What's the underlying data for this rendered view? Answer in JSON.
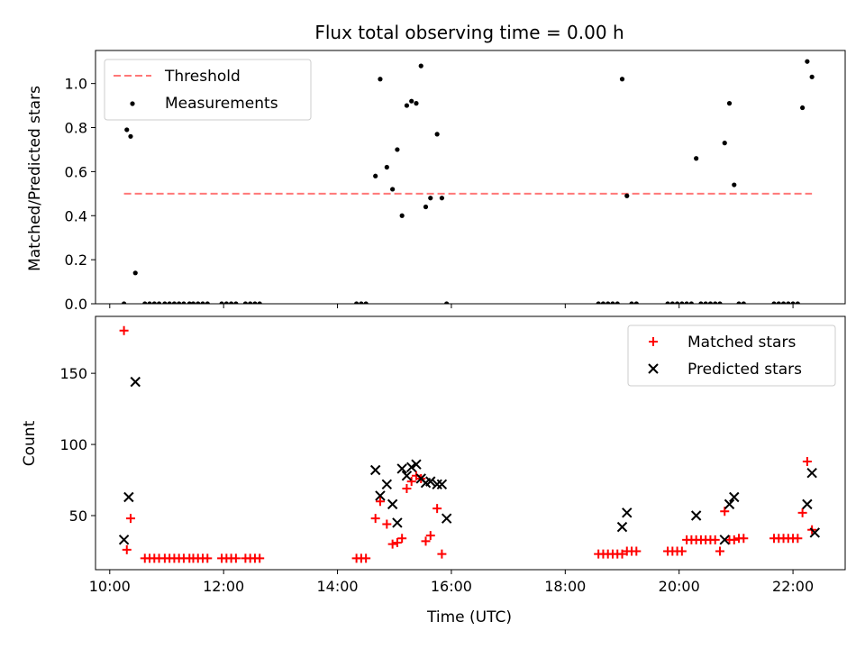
{
  "chart_data": [
    {
      "type": "scatter",
      "title": "Flux total observing time = 0.00 h",
      "ylabel": "Matched/Predicted stars",
      "xlabel": "",
      "xlim": [
        "09:45",
        "22:55"
      ],
      "ylim": [
        0,
        1.15
      ],
      "yticks": [
        0.0,
        0.2,
        0.4,
        0.6,
        0.8,
        1.0
      ],
      "ytick_labels": [
        "0.0",
        "0.2",
        "0.4",
        "0.6",
        "0.8",
        "1.0"
      ],
      "xticks": [
        "10:00",
        "12:00",
        "14:00",
        "16:00",
        "18:00",
        "20:00",
        "22:00"
      ],
      "show_xtick_labels": false,
      "legend_position": "upper left",
      "legend": [
        "Threshold",
        "Measurements"
      ],
      "series": [
        {
          "name": "Threshold",
          "kind": "dashed-line",
          "color": "#ff7777",
          "x": [
            "10:15",
            "22:20"
          ],
          "y": [
            0.5,
            0.5
          ]
        },
        {
          "name": "Measurements",
          "kind": "dot",
          "color": "#000000",
          "x": [
            "10:15",
            "10:18",
            "10:22",
            "10:27",
            "10:37",
            "10:42",
            "10:47",
            "10:52",
            "10:58",
            "11:03",
            "11:08",
            "11:13",
            "11:18",
            "11:24",
            "11:28",
            "11:33",
            "11:38",
            "11:43",
            "11:58",
            "12:03",
            "12:08",
            "12:13",
            "12:23",
            "12:28",
            "12:33",
            "12:38",
            "14:20",
            "14:25",
            "14:30",
            "14:40",
            "14:45",
            "14:52",
            "14:58",
            "15:03",
            "15:08",
            "15:13",
            "15:18",
            "15:23",
            "15:28",
            "15:33",
            "15:38",
            "15:45",
            "15:50",
            "15:55",
            "18:35",
            "18:40",
            "18:45",
            "18:50",
            "18:55",
            "19:00",
            "19:05",
            "19:10",
            "19:15",
            "19:48",
            "19:53",
            "19:58",
            "20:03",
            "20:08",
            "20:13",
            "20:18",
            "20:23",
            "20:28",
            "20:33",
            "20:38",
            "20:43",
            "20:48",
            "20:53",
            "20:58",
            "21:03",
            "21:08",
            "21:40",
            "21:45",
            "21:50",
            "21:55",
            "22:00",
            "22:05",
            "22:10",
            "22:15",
            "22:20"
          ],
          "y": [
            0.0,
            0.79,
            0.76,
            0.14,
            0.0,
            0.0,
            0.0,
            0.0,
            0.0,
            0.0,
            0.0,
            0.0,
            0.0,
            0.0,
            0.0,
            0.0,
            0.0,
            0.0,
            0.0,
            0.0,
            0.0,
            0.0,
            0.0,
            0.0,
            0.0,
            0.0,
            0.0,
            0.0,
            0.0,
            0.58,
            1.02,
            0.62,
            0.52,
            0.7,
            0.4,
            0.9,
            0.92,
            0.91,
            1.08,
            0.44,
            0.48,
            0.77,
            0.48,
            0.0,
            0.0,
            0.0,
            0.0,
            0.0,
            0.0,
            1.02,
            0.49,
            0.0,
            0.0,
            0.0,
            0.0,
            0.0,
            0.0,
            0.0,
            0.0,
            0.66,
            0.0,
            0.0,
            0.0,
            0.0,
            0.0,
            0.73,
            0.91,
            0.54,
            0.0,
            0.0,
            0.0,
            0.0,
            0.0,
            0.0,
            0.0,
            0.0,
            0.89,
            1.1,
            1.03
          ]
        }
      ]
    },
    {
      "type": "scatter",
      "title": "",
      "ylabel": "Count",
      "xlabel": "Time (UTC)",
      "xlim": [
        "09:45",
        "22:55"
      ],
      "ylim": [
        12,
        190
      ],
      "yticks": [
        50,
        100,
        150
      ],
      "ytick_labels": [
        "50",
        "100",
        "150"
      ],
      "xticks": [
        "10:00",
        "12:00",
        "14:00",
        "16:00",
        "18:00",
        "20:00",
        "22:00"
      ],
      "xtick_labels": [
        "10:00",
        "12:00",
        "14:00",
        "16:00",
        "18:00",
        "20:00",
        "22:00"
      ],
      "show_xtick_labels": true,
      "legend_position": "upper right",
      "legend": [
        "Matched stars",
        "Predicted stars"
      ],
      "series": [
        {
          "name": "Matched stars",
          "marker": "plus",
          "color": "#ff0000",
          "x": [
            "10:15",
            "10:18",
            "10:22",
            "10:37",
            "10:42",
            "10:47",
            "10:52",
            "10:58",
            "11:03",
            "11:08",
            "11:13",
            "11:18",
            "11:24",
            "11:28",
            "11:33",
            "11:38",
            "11:43",
            "11:58",
            "12:03",
            "12:08",
            "12:13",
            "12:23",
            "12:28",
            "12:33",
            "12:38",
            "14:20",
            "14:25",
            "14:30",
            "14:40",
            "14:45",
            "14:52",
            "14:58",
            "15:03",
            "15:08",
            "15:13",
            "15:18",
            "15:23",
            "15:28",
            "15:33",
            "15:38",
            "15:45",
            "15:50",
            "18:35",
            "18:40",
            "18:45",
            "18:50",
            "18:55",
            "19:00",
            "19:05",
            "19:10",
            "19:15",
            "19:48",
            "19:53",
            "19:58",
            "20:03",
            "20:08",
            "20:13",
            "20:18",
            "20:23",
            "20:28",
            "20:33",
            "20:38",
            "20:43",
            "20:48",
            "20:53",
            "20:58",
            "21:03",
            "21:08",
            "21:40",
            "21:45",
            "21:50",
            "21:55",
            "22:00",
            "22:05",
            "22:10",
            "22:15",
            "22:20"
          ],
          "y": [
            180,
            26,
            48,
            20,
            20,
            20,
            20,
            20,
            20,
            20,
            20,
            20,
            20,
            20,
            20,
            20,
            20,
            20,
            20,
            20,
            20,
            20,
            20,
            20,
            20,
            20,
            20,
            20,
            48,
            60,
            44,
            30,
            31,
            34,
            69,
            74,
            78,
            76,
            32,
            36,
            55,
            23,
            23,
            23,
            23,
            23,
            23,
            23,
            25,
            25,
            25,
            25,
            25,
            25,
            25,
            33,
            33,
            33,
            33,
            33,
            33,
            33,
            25,
            53,
            33,
            33,
            34,
            34,
            34,
            34,
            34,
            34,
            34,
            34,
            52,
            88,
            40
          ],
          "fixups": {}
        },
        {
          "name": "Predicted stars",
          "marker": "x",
          "color": "#000000",
          "x": [
            "10:15",
            "10:20",
            "10:27",
            "14:40",
            "14:45",
            "14:52",
            "14:58",
            "15:03",
            "15:08",
            "15:13",
            "15:18",
            "15:23",
            "15:28",
            "15:33",
            "15:38",
            "15:45",
            "15:50",
            "15:55",
            "19:00",
            "19:05",
            "20:18",
            "20:48",
            "20:53",
            "20:58",
            "22:15",
            "22:20",
            "22:23"
          ],
          "y": [
            33,
            63,
            144,
            82,
            64,
            72,
            58,
            45,
            83,
            78,
            84,
            86,
            76,
            73,
            74,
            72,
            72,
            48,
            42,
            52,
            50,
            33,
            58,
            63,
            58,
            80,
            38
          ]
        }
      ]
    }
  ]
}
